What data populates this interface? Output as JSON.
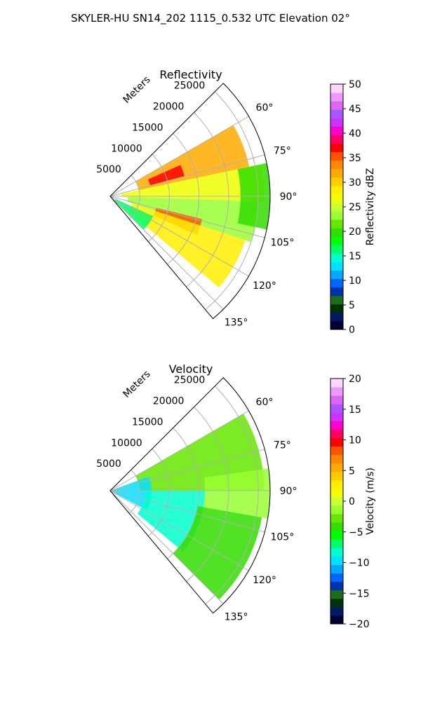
{
  "figure": {
    "suptitle": "SKYLER-HU  SN14_202  1115_0.532 UTC Elevation 02°"
  },
  "chart_data": [
    {
      "type": "heatmap",
      "projection": "polar-sector",
      "title": "Reflectivity",
      "radial_label": "Meters",
      "radial_ticks": [
        5000,
        10000,
        15000,
        20000,
        25000
      ],
      "radial_tick_labels": [
        "5000",
        "10000",
        "15000",
        "20000",
        "25000"
      ],
      "rlim": [
        0,
        27000
      ],
      "theta_ticks_deg": [
        60,
        75,
        90,
        105,
        120,
        135
      ],
      "theta_tick_labels": [
        "60°",
        "75°",
        "90°",
        "105°",
        "120°",
        "135°"
      ],
      "theta_range_deg": [
        45,
        140
      ],
      "grid": true,
      "colorbar": {
        "label": "Reflectivity dBZ",
        "range": [
          0,
          50
        ],
        "ticks": [
          0,
          5,
          10,
          15,
          20,
          25,
          30,
          35,
          40,
          45,
          50
        ],
        "tick_labels": [
          "0",
          "5",
          "10",
          "15",
          "20",
          "25",
          "30",
          "35",
          "40",
          "45",
          "50"
        ],
        "colors": [
          "#000033",
          "#001a66",
          "#003300",
          "#1d6b1d",
          "#0033aa",
          "#0066ff",
          "#00aaff",
          "#00e0ff",
          "#00ffcc",
          "#00ff66",
          "#00ff00",
          "#33dd00",
          "#66e600",
          "#99ff33",
          "#ccff33",
          "#eeff00",
          "#ffee00",
          "#ffcc00",
          "#ffaa00",
          "#ff8800",
          "#ff5500",
          "#ff0000",
          "#ff0066",
          "#ff00cc",
          "#cc33ff",
          "#aa55ff",
          "#dd66ee",
          "#ee99ff",
          "#ffd6ff"
        ]
      },
      "sample_regions": [
        {
          "theta_deg": [
            60,
            78
          ],
          "r": [
            5000,
            24000
          ],
          "value": 32
        },
        {
          "theta_deg": [
            66,
            75
          ],
          "r": [
            7000,
            13000
          ],
          "value": 37
        },
        {
          "theta_deg": [
            78,
            92
          ],
          "r": [
            2000,
            26000
          ],
          "value": 27
        },
        {
          "theta_deg": [
            92,
            108
          ],
          "r": [
            3000,
            25000
          ],
          "value": 24
        },
        {
          "theta_deg": [
            104,
            114
          ],
          "r": [
            8000,
            16000
          ],
          "value": 36
        },
        {
          "theta_deg": [
            108,
            130
          ],
          "r": [
            4000,
            24000
          ],
          "value": 28
        },
        {
          "theta_deg": [
            115,
            135
          ],
          "r": [
            1000,
            8000
          ],
          "value": 17
        },
        {
          "theta_deg": [
            78,
            102
          ],
          "r": [
            22000,
            27000
          ],
          "value": 19
        }
      ]
    },
    {
      "type": "heatmap",
      "projection": "polar-sector",
      "title": "Velocity",
      "radial_label": "Meters",
      "radial_ticks": [
        5000,
        10000,
        15000,
        20000,
        25000
      ],
      "radial_tick_labels": [
        "5000",
        "10000",
        "15000",
        "20000",
        "25000"
      ],
      "rlim": [
        0,
        27000
      ],
      "theta_ticks_deg": [
        60,
        75,
        90,
        105,
        120,
        135
      ],
      "theta_tick_labels": [
        "60°",
        "75°",
        "90°",
        "105°",
        "120°",
        "135°"
      ],
      "theta_range_deg": [
        45,
        140
      ],
      "grid": true,
      "colorbar": {
        "label": "Velocity (m/s)",
        "range": [
          -20,
          20
        ],
        "ticks": [
          -20,
          -15,
          -10,
          -5,
          0,
          5,
          10,
          15,
          20
        ],
        "tick_labels": [
          "−20",
          "−15",
          "−10",
          "−5",
          "0",
          "5",
          "10",
          "15",
          "20"
        ],
        "colors": [
          "#000033",
          "#001a66",
          "#003300",
          "#1d6b1d",
          "#0033aa",
          "#0066ff",
          "#00aaff",
          "#00e0ff",
          "#00ffcc",
          "#00ff66",
          "#00ff00",
          "#33dd00",
          "#66e600",
          "#99ff33",
          "#ccff33",
          "#eeff00",
          "#ffee00",
          "#ffcc00",
          "#ffaa00",
          "#ff8800",
          "#ff5500",
          "#ff0000",
          "#ff0066",
          "#ff00cc",
          "#cc33ff",
          "#aa55ff",
          "#dd66ee",
          "#ee99ff",
          "#ffd6ff"
        ]
      },
      "sample_regions": [
        {
          "theta_deg": [
            60,
            90
          ],
          "r": [
            5000,
            26000
          ],
          "value": -3
        },
        {
          "theta_deg": [
            70,
            118
          ],
          "r": [
            0,
            7000
          ],
          "value": -10
        },
        {
          "theta_deg": [
            90,
            130
          ],
          "r": [
            6000,
            16000
          ],
          "value": -8
        },
        {
          "theta_deg": [
            100,
            135
          ],
          "r": [
            15000,
            26000
          ],
          "value": -4
        },
        {
          "theta_deg": [
            82,
            100
          ],
          "r": [
            16000,
            27000
          ],
          "value": -1
        }
      ]
    }
  ]
}
